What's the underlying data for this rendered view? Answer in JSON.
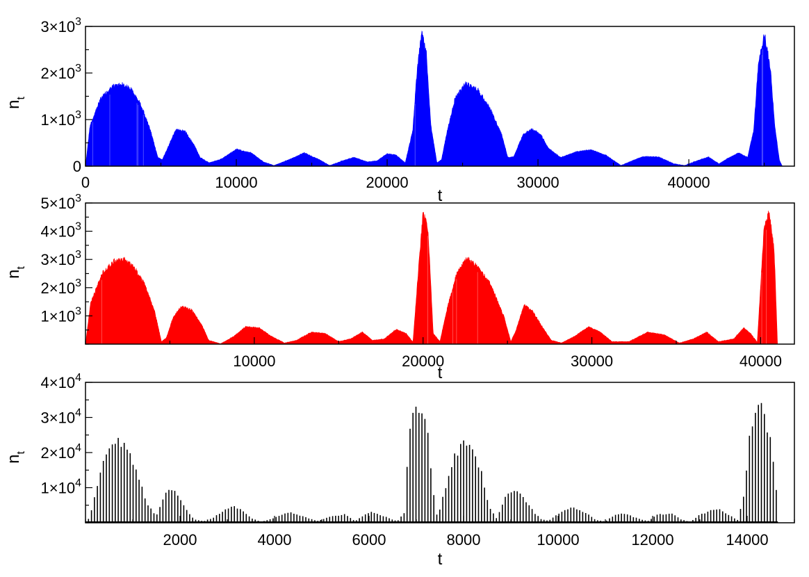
{
  "chart_data": [
    {
      "type": "area",
      "series": [
        {
          "name": "",
          "color": "#0000ff"
        }
      ],
      "xlabel": "t",
      "ylabel": {
        "base": "n",
        "sub": "t"
      },
      "xlim": [
        0,
        47000
      ],
      "ylim": [
        0,
        3000
      ],
      "xticks": [
        0,
        10000,
        20000,
        30000,
        40000
      ],
      "xtick_labels": [
        "0",
        "10000",
        "20000",
        "30000",
        "40000"
      ],
      "yticks": [
        0,
        1000,
        2000,
        3000
      ],
      "ytick_labels": [
        {
          "mantissa": "0",
          "exp": ""
        },
        {
          "mantissa": "1×10",
          "exp": "3"
        },
        {
          "mantissa": "2×10",
          "exp": "3"
        },
        {
          "mantissa": "3×10",
          "exp": "3"
        }
      ],
      "envelope": {
        "x": [
          0,
          300,
          1000,
          1800,
          2400,
          3000,
          3700,
          4300,
          4800,
          5100,
          5500,
          6000,
          6600,
          7200,
          7600,
          8200,
          9000,
          10000,
          11000,
          11800,
          12500,
          13500,
          14500,
          15500,
          16200,
          17000,
          17800,
          18700,
          19300,
          20000,
          20600,
          21200,
          21700,
          22000,
          22300,
          22600,
          22900,
          23300,
          23600,
          24000,
          24500,
          25200,
          26000,
          26800,
          27600,
          28000,
          28400,
          29000,
          29600,
          30200,
          30700,
          31500,
          32500,
          33500,
          34500,
          35500,
          36200,
          37000,
          38000,
          39000,
          39700,
          40500,
          41300,
          42000,
          42600,
          43300,
          43900,
          44300,
          44600,
          45000,
          45400,
          45700,
          46000,
          46200,
          47000
        ],
        "y": [
          0,
          900,
          1500,
          1770,
          1820,
          1720,
          1350,
          800,
          200,
          150,
          450,
          820,
          780,
          480,
          200,
          80,
          160,
          380,
          300,
          100,
          20,
          150,
          300,
          150,
          20,
          120,
          200,
          100,
          120,
          280,
          250,
          80,
          800,
          2200,
          2950,
          2500,
          900,
          80,
          150,
          800,
          1500,
          1840,
          1700,
          1300,
          700,
          200,
          220,
          700,
          830,
          700,
          400,
          200,
          320,
          370,
          250,
          20,
          120,
          220,
          210,
          60,
          20,
          120,
          210,
          60,
          180,
          300,
          200,
          800,
          2200,
          2950,
          2200,
          900,
          150,
          0,
          0
        ]
      },
      "fill_range": [
        0,
        46200
      ]
    },
    {
      "type": "area",
      "series": [
        {
          "name": "",
          "color": "#ff0000"
        }
      ],
      "xlabel": "t",
      "ylabel": {
        "base": "n",
        "sub": "t"
      },
      "xlim": [
        0,
        42000
      ],
      "ylim": [
        0,
        5000
      ],
      "xticks": [
        10000,
        20000,
        30000,
        40000
      ],
      "xtick_labels": [
        "10000",
        "20000",
        "30000",
        "40000"
      ],
      "yticks": [
        1000,
        2000,
        3000,
        4000,
        5000
      ],
      "ytick_labels": [
        {
          "mantissa": "1×10",
          "exp": "3"
        },
        {
          "mantissa": "2×10",
          "exp": "3"
        },
        {
          "mantissa": "3×10",
          "exp": "3"
        },
        {
          "mantissa": "4×10",
          "exp": "3"
        },
        {
          "mantissa": "5×10",
          "exp": "3"
        }
      ],
      "envelope": {
        "x": [
          0,
          300,
          1000,
          1700,
          2300,
          2900,
          3500,
          4100,
          4500,
          4800,
          5200,
          5700,
          6300,
          6900,
          7300,
          8000,
          8800,
          9500,
          10300,
          11000,
          11800,
          12500,
          13400,
          14200,
          15000,
          15700,
          16400,
          17000,
          17700,
          18400,
          19000,
          19400,
          19700,
          20000,
          20300,
          20600,
          21000,
          21500,
          22000,
          22600,
          23300,
          24000,
          24800,
          25200,
          25500,
          26000,
          26500,
          27000,
          27600,
          28200,
          29000,
          29800,
          30500,
          31200,
          32200,
          33300,
          34300,
          35200,
          36000,
          36800,
          37500,
          38400,
          39000,
          39400,
          39800,
          40200,
          40500,
          40800,
          41000,
          42000
        ],
        "y": [
          0,
          1500,
          2600,
          3050,
          3100,
          2800,
          2200,
          1200,
          100,
          250,
          1000,
          1400,
          1250,
          700,
          150,
          20,
          300,
          650,
          600,
          300,
          50,
          150,
          450,
          400,
          100,
          200,
          450,
          150,
          200,
          550,
          400,
          80,
          2500,
          4800,
          4200,
          400,
          100,
          1500,
          2600,
          3150,
          2800,
          2200,
          1000,
          100,
          500,
          1450,
          1200,
          700,
          150,
          50,
          300,
          650,
          450,
          100,
          100,
          450,
          350,
          50,
          200,
          450,
          100,
          200,
          600,
          400,
          80,
          4200,
          4850,
          3500,
          0,
          0
        ]
      },
      "fill_range": [
        0,
        41000
      ]
    },
    {
      "type": "bar",
      "series": [
        {
          "name": "",
          "color": "#000000"
        }
      ],
      "xlabel": "t",
      "ylabel": {
        "base": "n",
        "sub": "t"
      },
      "xlim": [
        0,
        15000
      ],
      "ylim": [
        0,
        40000
      ],
      "xticks": [
        2000,
        4000,
        6000,
        8000,
        10000,
        12000,
        14000
      ],
      "xtick_labels": [
        "2000",
        "4000",
        "6000",
        "8000",
        "10000",
        "12000",
        "14000"
      ],
      "yticks": [
        10000,
        20000,
        30000,
        40000
      ],
      "ytick_labels": [
        {
          "mantissa": "1×10",
          "exp": "4"
        },
        {
          "mantissa": "2×10",
          "exp": "4"
        },
        {
          "mantissa": "3×10",
          "exp": "4"
        },
        {
          "mantissa": "4×10",
          "exp": "4"
        }
      ],
      "envelope": {
        "x": [
          0,
          100,
          300,
          500,
          700,
          900,
          1100,
          1300,
          1500,
          1650,
          1800,
          1950,
          2100,
          2300,
          2500,
          2700,
          2900,
          3100,
          3300,
          3500,
          3700,
          3900,
          4300,
          4700,
          4900,
          5200,
          5500,
          5700,
          6050,
          6300,
          6600,
          6750,
          6850,
          6950,
          7050,
          7150,
          7250,
          7350,
          7450,
          7600,
          7800,
          8000,
          8200,
          8400,
          8550,
          8700,
          8850,
          9050,
          9250,
          9500,
          9650,
          9800,
          10000,
          10300,
          10600,
          10800,
          11000,
          11200,
          11400,
          11700,
          11900,
          12100,
          12400,
          12600,
          12800,
          13000,
          13200,
          13400,
          13600,
          13800,
          13950,
          14050,
          14150,
          14300,
          14450,
          14600,
          14650,
          15000
        ],
        "y": [
          0,
          2000,
          15000,
          23000,
          24500,
          22000,
          15000,
          6000,
          2000,
          8000,
          10000,
          8500,
          4500,
          1000,
          500,
          1500,
          3500,
          5000,
          4000,
          1500,
          300,
          1000,
          3200,
          1500,
          500,
          2000,
          2500,
          500,
          3500,
          2000,
          500,
          3000,
          28000,
          34000,
          35000,
          33000,
          26000,
          11000,
          1000,
          10000,
          20000,
          24500,
          22000,
          14000,
          4500,
          1200,
          7000,
          10000,
          8000,
          3000,
          1000,
          600,
          2800,
          4500,
          3000,
          800,
          400,
          2500,
          2800,
          1200,
          500,
          2500,
          2800,
          1000,
          300,
          2500,
          3500,
          4500,
          2500,
          800,
          10000,
          25000,
          34000,
          35000,
          28000,
          15000,
          0,
          0
        ]
      },
      "bar_step": 63
    }
  ]
}
